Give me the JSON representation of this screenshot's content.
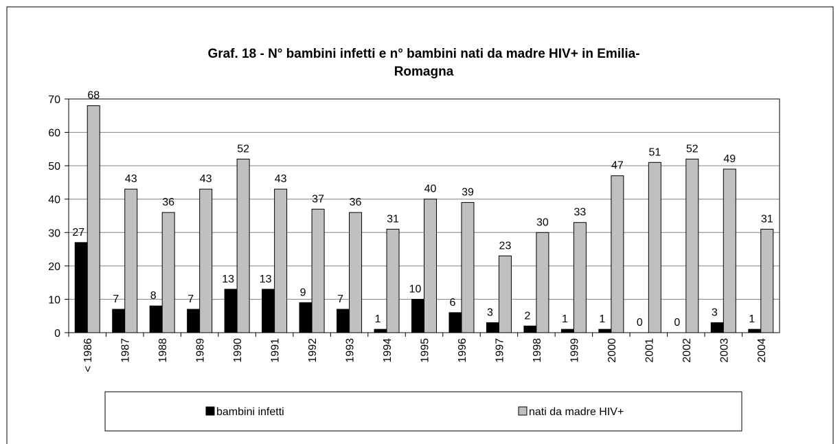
{
  "chart_data": {
    "type": "bar",
    "title": "Graf. 18 - N° bambini infetti e n° bambini nati da madre HIV+ in Emilia-Romagna",
    "categories": [
      "< 1986",
      "1987",
      "1988",
      "1989",
      "1990",
      "1991",
      "1992",
      "1993",
      "1994",
      "1995",
      "1996",
      "1997",
      "1998",
      "1999",
      "2000",
      "2001",
      "2002",
      "2003",
      "2004"
    ],
    "series": [
      {
        "name": "bambini infetti",
        "color": "#000000",
        "values": [
          27,
          7,
          8,
          7,
          13,
          13,
          9,
          7,
          1,
          10,
          6,
          3,
          2,
          1,
          1,
          0,
          0,
          3,
          1
        ]
      },
      {
        "name": "nati da madre HIV+",
        "color": "#c0c0c0",
        "values": [
          68,
          43,
          36,
          43,
          52,
          43,
          37,
          36,
          31,
          40,
          39,
          23,
          30,
          33,
          47,
          51,
          52,
          49,
          31
        ]
      }
    ],
    "ylim": [
      0,
      70
    ],
    "yticks": [
      0,
      10,
      20,
      30,
      40,
      50,
      60,
      70
    ],
    "grid": true,
    "legend": "bottom"
  }
}
